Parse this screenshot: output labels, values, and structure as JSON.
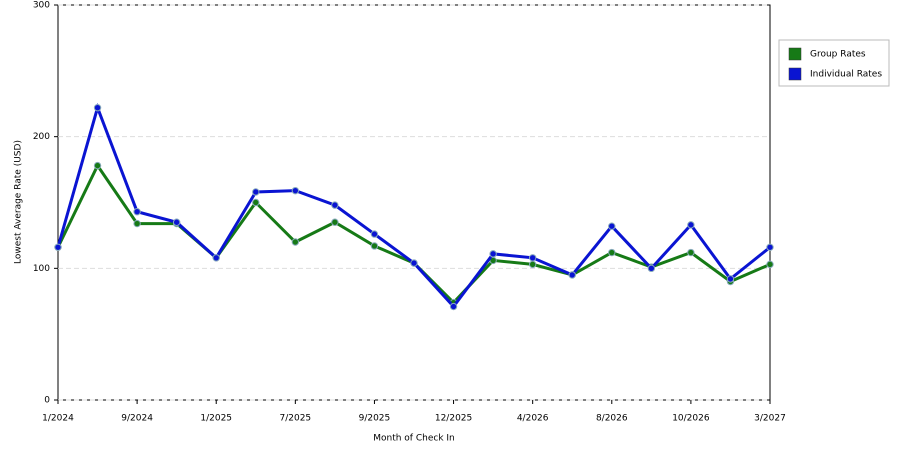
{
  "chart_data": {
    "type": "line",
    "x_label": "Month of Check In",
    "y_label": "Lowest Average Rate (USD)",
    "categories": [
      "1/2024",
      null,
      "9/2024",
      null,
      "1/2025",
      null,
      "7/2025",
      null,
      "9/2025",
      null,
      "12/2025",
      null,
      "4/2026",
      null,
      "8/2026",
      null,
      "10/2026",
      null,
      "3/2027"
    ],
    "series": [
      {
        "name": "Group Rates",
        "color": "#167a16",
        "values": [
          116,
          178,
          134,
          134,
          108,
          150,
          120,
          135,
          117,
          104,
          74,
          106,
          103,
          95,
          112,
          101,
          112,
          90,
          103
        ]
      },
      {
        "name": "Individual Rates",
        "color": "#0a14d2",
        "values": [
          116,
          222,
          143,
          135,
          108,
          158,
          159,
          148,
          126,
          104,
          71,
          111,
          108,
          95,
          132,
          100,
          133,
          92,
          116
        ]
      }
    ],
    "ylim": [
      0,
      300
    ],
    "yticks": [
      0,
      100,
      200,
      300
    ],
    "grid": true
  }
}
